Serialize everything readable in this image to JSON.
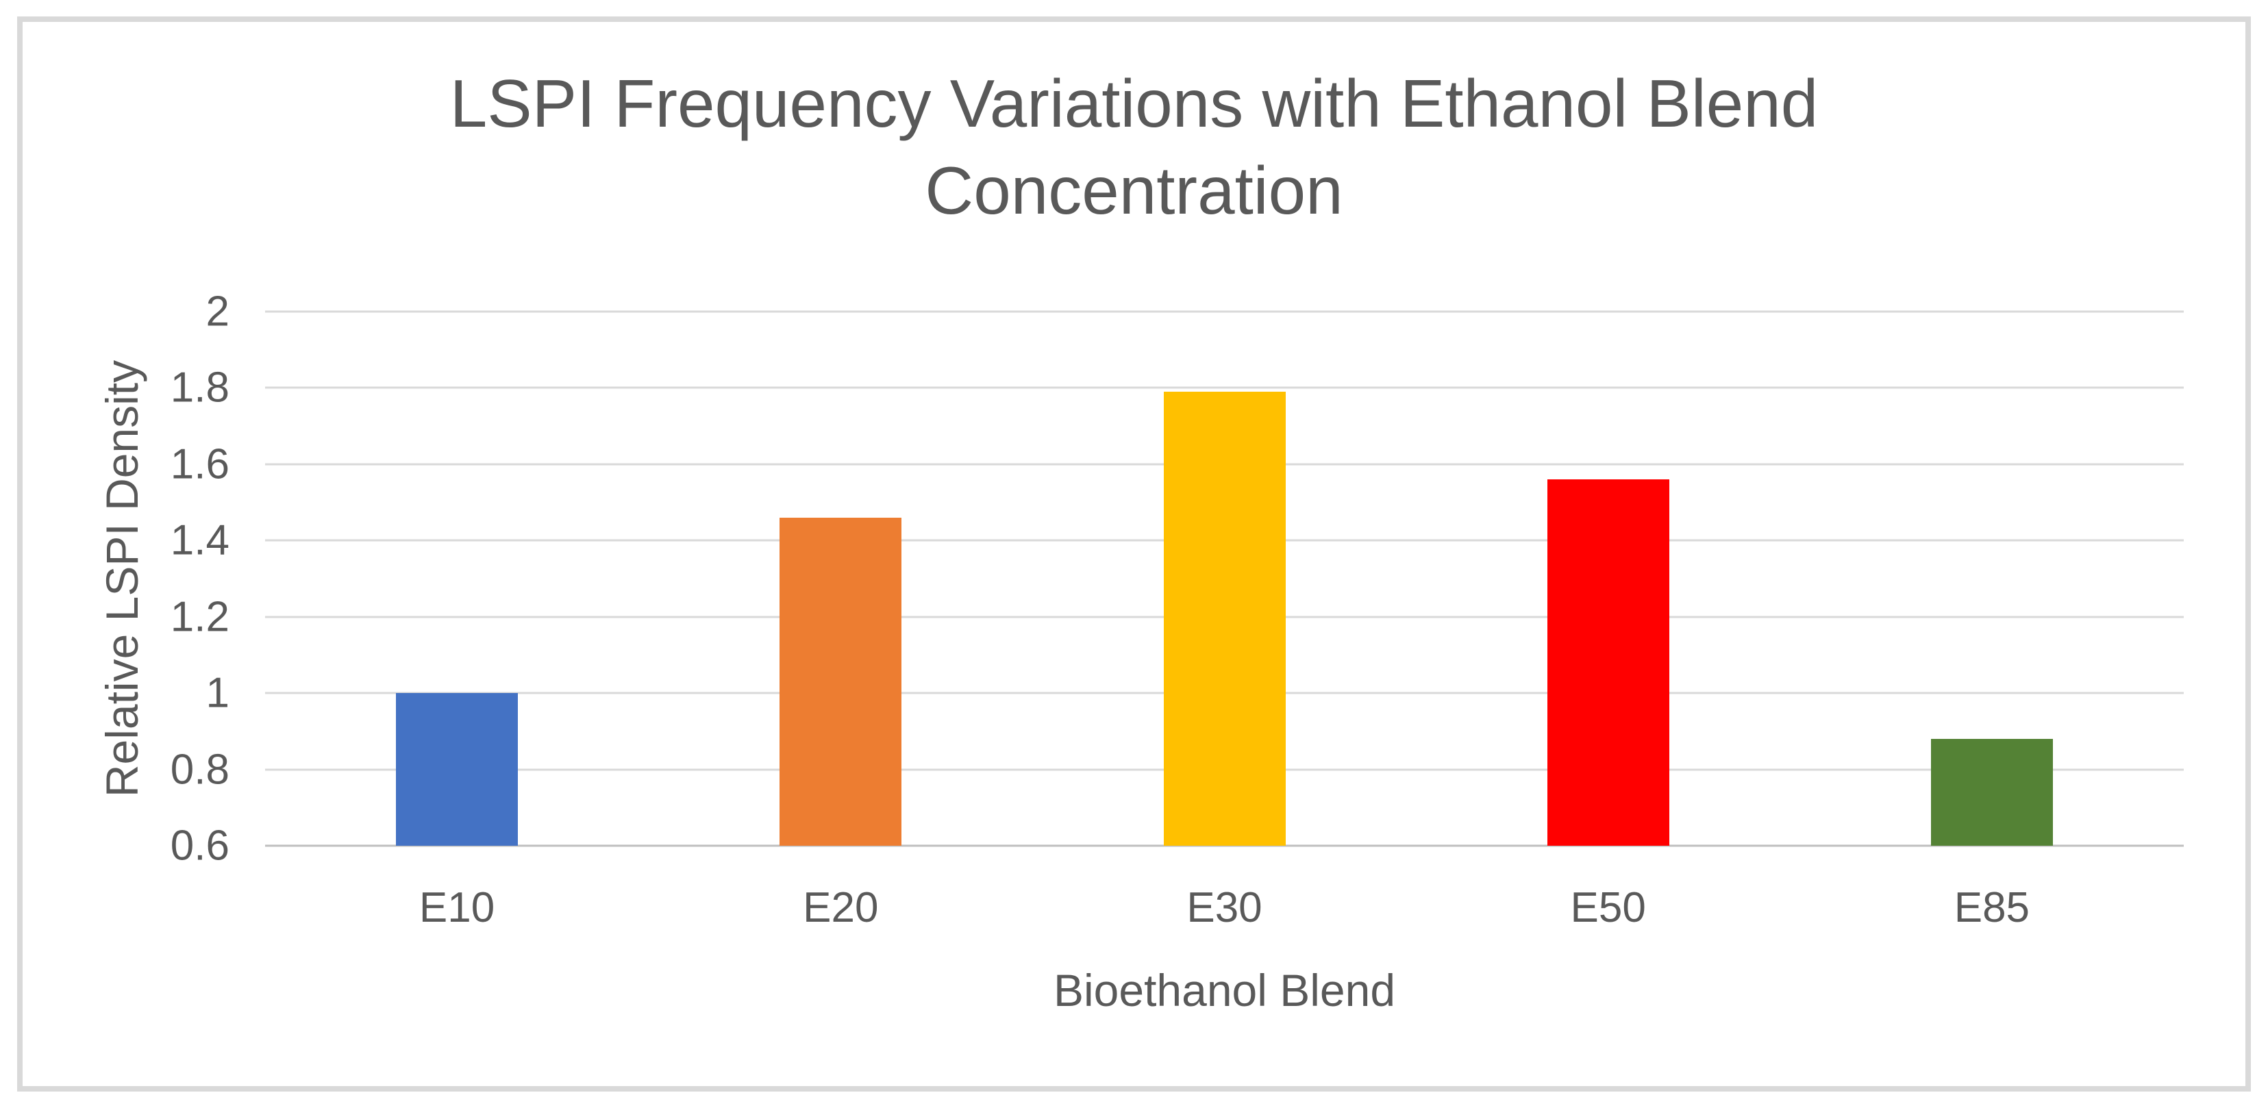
{
  "chart_data": {
    "type": "bar",
    "title": "LSPI Frequency Variations with Ethanol Blend Concentration",
    "xlabel": "Bioethanol Blend",
    "ylabel": "Relative LSPI Density",
    "categories": [
      "E10",
      "E20",
      "E30",
      "E50",
      "E85"
    ],
    "values": [
      1.0,
      1.46,
      1.79,
      1.56,
      0.88
    ],
    "bar_colors": [
      "#4472C4",
      "#ED7D31",
      "#FFC000",
      "#FF0000",
      "#548235"
    ],
    "ylim": [
      0.6,
      2.0
    ],
    "ytick_labels": [
      "2",
      "1.8",
      "1.6",
      "1.4",
      "1.2",
      "1",
      "0.8",
      "0.6"
    ],
    "ytick_values": [
      2.0,
      1.8,
      1.6,
      1.4,
      1.2,
      1.0,
      0.8,
      0.6
    ],
    "grid": true,
    "legend_position": "none",
    "colors": {
      "text": "#595959",
      "gridline": "#D9D9D9",
      "axis_line": "#BFBFBF",
      "frame_border": "#D9D9D9",
      "background": "#FFFFFF"
    }
  }
}
